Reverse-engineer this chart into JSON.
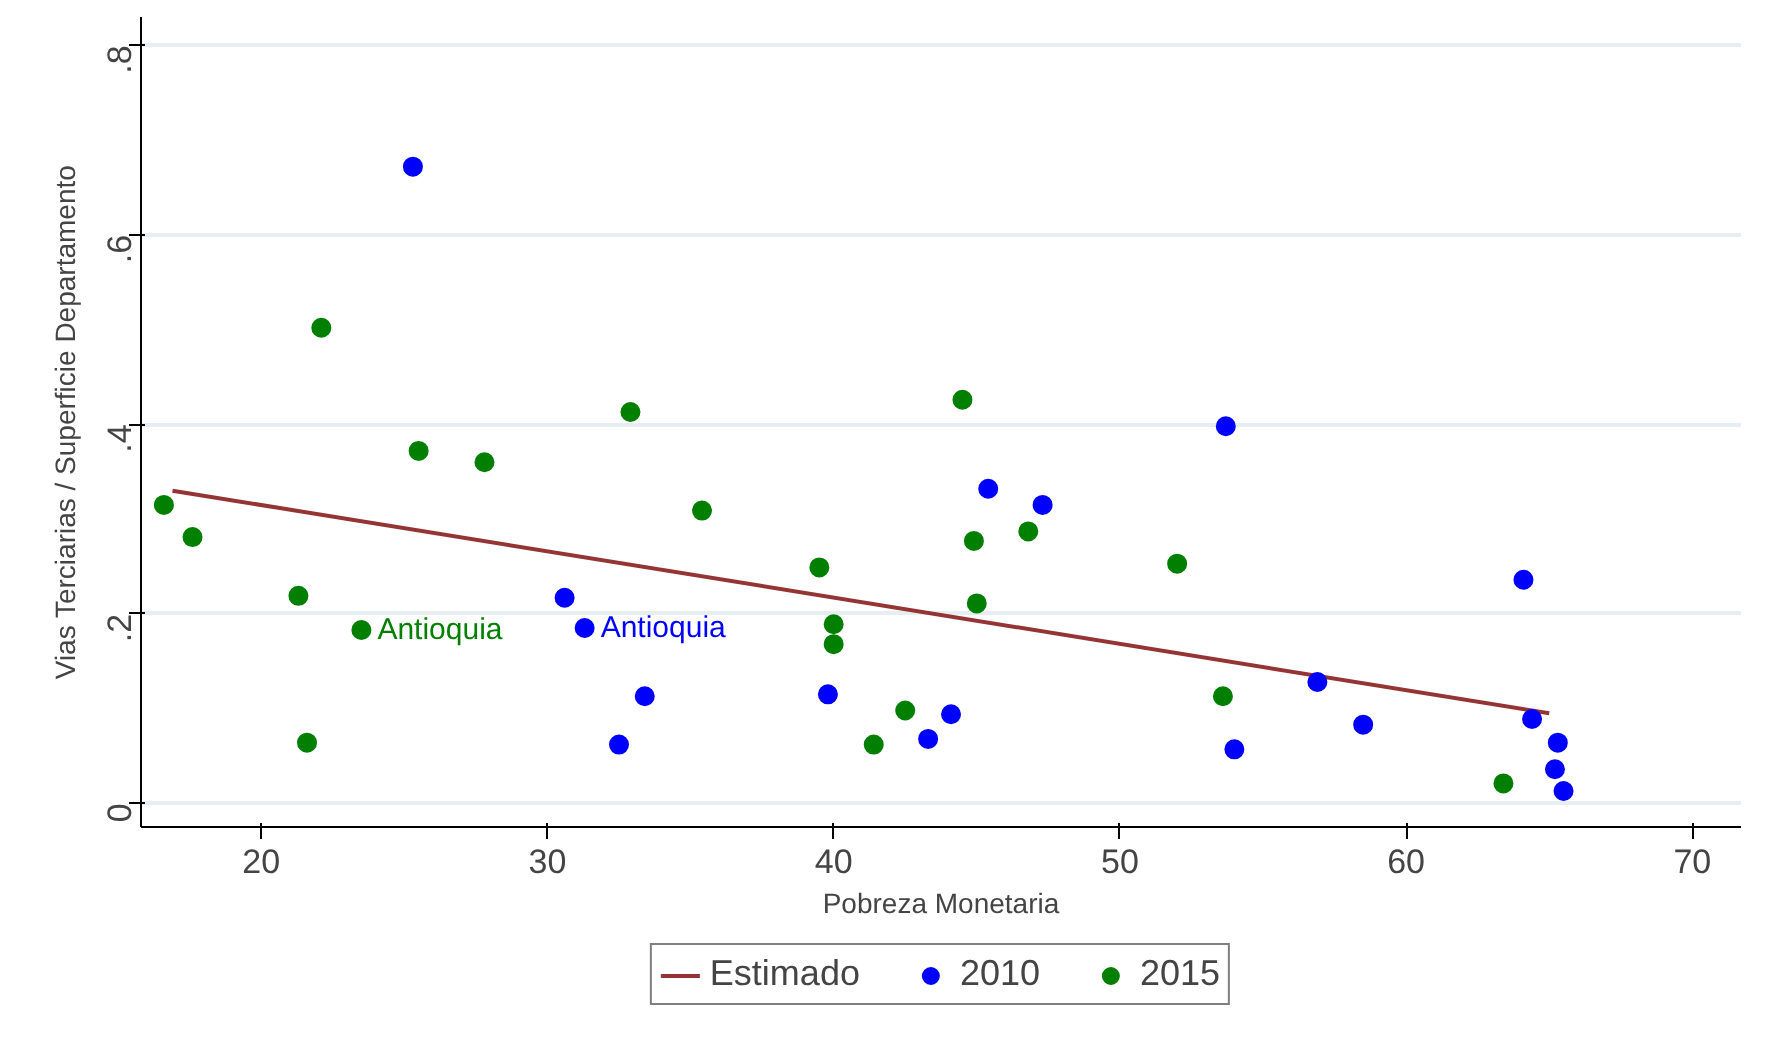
{
  "chart_data": {
    "type": "scatter",
    "xlabel": "Pobreza Monetaria",
    "ylabel": "Vias Terciarias / Superficie Departamento",
    "xlim": [
      15.8,
      71.7
    ],
    "ylim": [
      -0.025,
      0.83
    ],
    "xticks": [
      20,
      30,
      40,
      50,
      60,
      70
    ],
    "yticks": [
      {
        "value": 0,
        "label": "0"
      },
      {
        "value": 0.2,
        "label": ".2"
      },
      {
        "value": 0.4,
        "label": ".4"
      },
      {
        "value": 0.6,
        "label": ".6"
      },
      {
        "value": 0.8,
        "label": ".8"
      }
    ],
    "grid": "y",
    "legend": "bottom",
    "marker": "circle",
    "series": [
      {
        "name": "Estimado",
        "type": "line",
        "color": "#943434",
        "marker": "none",
        "x": [
          16.9,
          65.0
        ],
        "values": [
          0.33,
          0.095
        ]
      },
      {
        "name": "2010",
        "color": "#0000ff",
        "x": [
          25.3,
          30.6,
          31.3,
          33.4,
          32.5,
          39.8,
          44.1,
          43.3,
          45.4,
          47.3,
          53.7,
          54.0,
          56.9,
          58.5,
          64.1,
          64.4,
          65.3,
          65.2,
          65.5
        ],
        "values": [
          0.672,
          0.217,
          0.185,
          0.113,
          0.062,
          0.115,
          0.094,
          0.068,
          0.332,
          0.315,
          0.398,
          0.057,
          0.128,
          0.083,
          0.236,
          0.089,
          0.064,
          0.036,
          0.013
        ]
      },
      {
        "name": "2015",
        "color": "#007f00",
        "x": [
          16.6,
          17.6,
          22.1,
          21.3,
          21.6,
          23.5,
          25.5,
          27.8,
          32.9,
          35.4,
          39.5,
          40.0,
          40.0,
          41.4,
          42.5,
          44.5,
          44.9,
          45.0,
          46.8,
          52.0,
          53.6,
          63.4
        ],
        "values": [
          0.315,
          0.281,
          0.502,
          0.219,
          0.064,
          0.183,
          0.372,
          0.36,
          0.413,
          0.309,
          0.249,
          0.189,
          0.168,
          0.062,
          0.098,
          0.426,
          0.277,
          0.211,
          0.287,
          0.253,
          0.113,
          0.021
        ]
      }
    ],
    "annotations": [
      {
        "text": "Antioquia",
        "x": 23.5,
        "y": 0.183
      },
      {
        "text": "Antioquia",
        "x": 31.3,
        "y": 0.185
      }
    ]
  }
}
